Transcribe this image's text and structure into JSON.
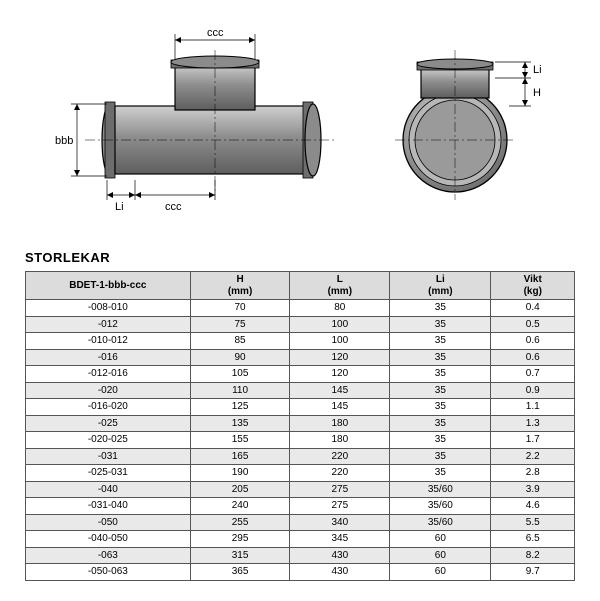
{
  "diagram": {
    "labels": {
      "top_ccc": "ccc",
      "left_bbb": "bbb",
      "bottom_li": "Li",
      "bottom_ccc": "ccc",
      "right_li": "Li",
      "right_h": "H"
    },
    "colors": {
      "body": "#9a9a9a",
      "body_dark": "#6d6d6d",
      "outline": "#000000",
      "dim_line": "#000000"
    }
  },
  "section_title": "STORLEKAR",
  "columns": [
    {
      "label": "BDET-1-bbb-ccc",
      "unit": ""
    },
    {
      "label": "H",
      "unit": "(mm)"
    },
    {
      "label": "L",
      "unit": "(mm)"
    },
    {
      "label": "Li",
      "unit": "(mm)"
    },
    {
      "label": "Vikt",
      "unit": "(kg)"
    }
  ],
  "rows": [
    [
      "-008-010",
      "70",
      "80",
      "35",
      "0.4"
    ],
    [
      "-012",
      "75",
      "100",
      "35",
      "0.5"
    ],
    [
      "-010-012",
      "85",
      "100",
      "35",
      "0.6"
    ],
    [
      "-016",
      "90",
      "120",
      "35",
      "0.6"
    ],
    [
      "-012-016",
      "105",
      "120",
      "35",
      "0.7"
    ],
    [
      "-020",
      "110",
      "145",
      "35",
      "0.9"
    ],
    [
      "-016-020",
      "125",
      "145",
      "35",
      "1.1"
    ],
    [
      "-025",
      "135",
      "180",
      "35",
      "1.3"
    ],
    [
      "-020-025",
      "155",
      "180",
      "35",
      "1.7"
    ],
    [
      "-031",
      "165",
      "220",
      "35",
      "2.2"
    ],
    [
      "-025-031",
      "190",
      "220",
      "35",
      "2.8"
    ],
    [
      "-040",
      "205",
      "275",
      "35/60",
      "3.9"
    ],
    [
      "-031-040",
      "240",
      "275",
      "35/60",
      "4.6"
    ],
    [
      "-050",
      "255",
      "340",
      "35/60",
      "5.5"
    ],
    [
      "-040-050",
      "295",
      "345",
      "60",
      "6.5"
    ],
    [
      "-063",
      "315",
      "430",
      "60",
      "8.2"
    ],
    [
      "-050-063",
      "365",
      "430",
      "60",
      "9.7"
    ]
  ]
}
